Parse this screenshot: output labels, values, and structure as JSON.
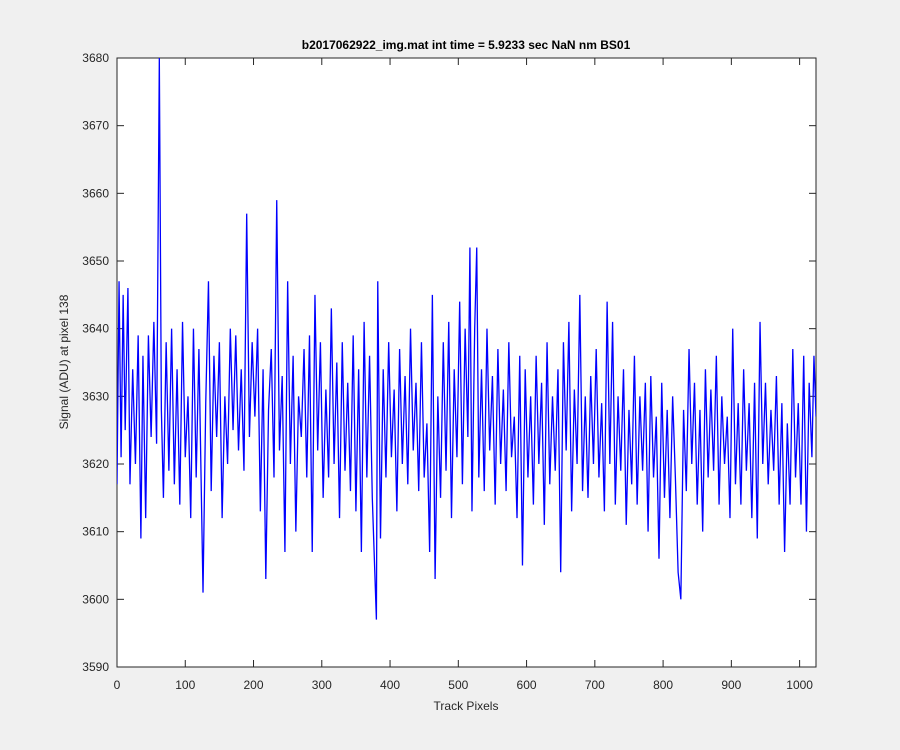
{
  "chart_data": {
    "type": "line",
    "title": "b2017062922_img.mat int time = 5.9233 sec  NaN nm BS01",
    "xlabel": "Track Pixels",
    "ylabel": "Signal (ADU) at pixel 138",
    "xlim": [
      0,
      1024
    ],
    "ylim": [
      3590,
      3680
    ],
    "xticks": [
      0,
      100,
      200,
      300,
      400,
      500,
      600,
      700,
      800,
      900,
      1000
    ],
    "yticks": [
      3590,
      3600,
      3610,
      3620,
      3630,
      3640,
      3650,
      3660,
      3670,
      3680
    ],
    "x": [
      0,
      3,
      6,
      9,
      12,
      16,
      19,
      23,
      27,
      31,
      35,
      38,
      42,
      46,
      50,
      54,
      58,
      62,
      65,
      68,
      72,
      76,
      80,
      84,
      88,
      92,
      96,
      100,
      104,
      108,
      112,
      116,
      120,
      126,
      130,
      134,
      138,
      142,
      146,
      150,
      154,
      158,
      162,
      166,
      170,
      174,
      178,
      182,
      186,
      190,
      194,
      198,
      202,
      206,
      210,
      214,
      218,
      222,
      226,
      230,
      234,
      238,
      242,
      246,
      250,
      254,
      258,
      262,
      266,
      270,
      274,
      278,
      282,
      286,
      290,
      294,
      298,
      302,
      306,
      310,
      314,
      318,
      322,
      326,
      330,
      334,
      338,
      342,
      346,
      350,
      354,
      358,
      362,
      366,
      370,
      374,
      380,
      382,
      386,
      390,
      394,
      398,
      402,
      406,
      410,
      414,
      418,
      422,
      426,
      430,
      434,
      438,
      442,
      446,
      450,
      454,
      458,
      462,
      466,
      470,
      474,
      478,
      482,
      486,
      490,
      494,
      498,
      502,
      506,
      510,
      514,
      517,
      520,
      524,
      527,
      530,
      534,
      538,
      542,
      546,
      550,
      554,
      558,
      562,
      566,
      570,
      574,
      578,
      582,
      586,
      590,
      594,
      598,
      602,
      606,
      610,
      614,
      618,
      622,
      626,
      630,
      634,
      638,
      642,
      646,
      650,
      654,
      658,
      662,
      666,
      670,
      674,
      678,
      682,
      686,
      690,
      694,
      698,
      702,
      706,
      710,
      714,
      718,
      722,
      726,
      730,
      734,
      738,
      742,
      746,
      750,
      754,
      758,
      762,
      766,
      770,
      774,
      778,
      782,
      786,
      790,
      794,
      798,
      802,
      806,
      810,
      814,
      818,
      822,
      826,
      830,
      834,
      838,
      842,
      846,
      850,
      854,
      858,
      862,
      866,
      870,
      874,
      878,
      882,
      886,
      890,
      894,
      898,
      902,
      906,
      910,
      914,
      918,
      922,
      926,
      930,
      934,
      938,
      942,
      946,
      950,
      954,
      958,
      962,
      966,
      970,
      974,
      978,
      982,
      986,
      990,
      994,
      998,
      1002,
      1006,
      1010,
      1014,
      1018,
      1021,
      1024
    ],
    "series": [
      {
        "name": "signal",
        "color": "#0000ff",
        "values": [
          3617,
          3647,
          3621,
          3645,
          3625,
          3646,
          3617,
          3634,
          3620,
          3639,
          3609,
          3636,
          3612,
          3639,
          3624,
          3641,
          3623,
          3680,
          3628,
          3615,
          3638,
          3619,
          3640,
          3617,
          3634,
          3614,
          3641,
          3621,
          3630,
          3612,
          3640,
          3618,
          3637,
          3601,
          3629,
          3647,
          3616,
          3636,
          3624,
          3638,
          3612,
          3630,
          3620,
          3640,
          3625,
          3639,
          3622,
          3634,
          3619,
          3657,
          3624,
          3638,
          3627,
          3640,
          3613,
          3634,
          3603,
          3628,
          3637,
          3618,
          3659,
          3622,
          3633,
          3607,
          3647,
          3620,
          3636,
          3610,
          3630,
          3624,
          3637,
          3618,
          3639,
          3607,
          3645,
          3622,
          3638,
          3615,
          3631,
          3618,
          3643,
          3620,
          3635,
          3612,
          3638,
          3619,
          3632,
          3616,
          3639,
          3613,
          3634,
          3607,
          3641,
          3618,
          3636,
          3615,
          3597,
          3647,
          3609,
          3634,
          3618,
          3638,
          3621,
          3631,
          3613,
          3637,
          3620,
          3633,
          3617,
          3640,
          3622,
          3632,
          3616,
          3638,
          3618,
          3626,
          3607,
          3645,
          3603,
          3630,
          3615,
          3638,
          3619,
          3641,
          3612,
          3634,
          3621,
          3644,
          3617,
          3640,
          3624,
          3652,
          3613,
          3640,
          3652,
          3618,
          3634,
          3616,
          3640,
          3622,
          3633,
          3614,
          3637,
          3620,
          3631,
          3616,
          3638,
          3621,
          3627,
          3612,
          3636,
          3605,
          3634,
          3618,
          3630,
          3614,
          3636,
          3620,
          3632,
          3611,
          3638,
          3617,
          3630,
          3619,
          3634,
          3604,
          3638,
          3622,
          3641,
          3613,
          3631,
          3620,
          3645,
          3616,
          3630,
          3615,
          3633,
          3620,
          3637,
          3618,
          3629,
          3613,
          3644,
          3620,
          3641,
          3614,
          3630,
          3619,
          3634,
          3611,
          3628,
          3617,
          3636,
          3614,
          3630,
          3619,
          3632,
          3610,
          3633,
          3618,
          3627,
          3606,
          3632,
          3615,
          3628,
          3612,
          3630,
          3618,
          3604,
          3600,
          3628,
          3616,
          3637,
          3620,
          3632,
          3614,
          3628,
          3610,
          3634,
          3618,
          3631,
          3619,
          3636,
          3614,
          3630,
          3620,
          3627,
          3612,
          3640,
          3617,
          3629,
          3614,
          3634,
          3619,
          3629,
          3612,
          3632,
          3609,
          3641,
          3620,
          3632,
          3617,
          3628,
          3619,
          3633,
          3614,
          3629,
          3607,
          3626,
          3614,
          3637,
          3618,
          3629,
          3614,
          3636,
          3610,
          3632,
          3621,
          3636,
          3627
        ]
      }
    ]
  }
}
